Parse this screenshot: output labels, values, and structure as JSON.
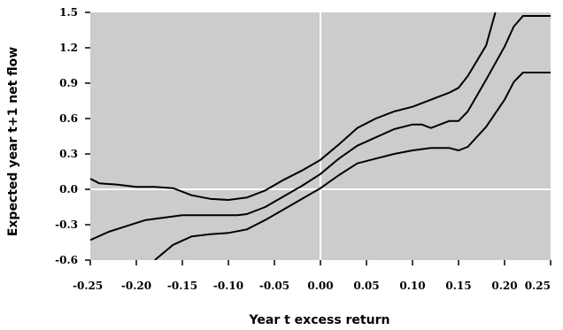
{
  "chart_data": {
    "type": "line",
    "title": "",
    "xlabel": "Year t excess return",
    "ylabel": "Expected year t+1 net flow",
    "xlim": [
      -0.25,
      0.25
    ],
    "ylim": [
      -0.6,
      1.5
    ],
    "x_ticks": [
      -0.25,
      -0.2,
      -0.15,
      -0.1,
      -0.05,
      0.0,
      0.05,
      0.1,
      0.15,
      0.2,
      0.25
    ],
    "x_tick_labels": [
      "-0.25",
      "-0.20",
      "-0.15",
      "-0.10",
      "-0.05",
      "0.00",
      "0.05",
      "0.10",
      "0.15",
      "0.20",
      "0.25"
    ],
    "y_ticks": [
      -0.6,
      -0.3,
      0.0,
      0.3,
      0.6,
      0.9,
      1.2,
      1.5
    ],
    "y_tick_labels": [
      "-0.6",
      "-0.3",
      "0.0",
      "0.3",
      "0.6",
      "0.9",
      "1.2",
      "1.5"
    ],
    "grid": false,
    "reference_lines": {
      "x": 0.0,
      "y": 0.0,
      "color": "#ffffff"
    },
    "colors": {
      "plot_background": "#cccccc",
      "line": "#000000"
    },
    "series": [
      {
        "role": "upper band",
        "x": [
          -0.25,
          -0.24,
          -0.22,
          -0.2,
          -0.18,
          -0.16,
          -0.14,
          -0.12,
          -0.1,
          -0.08,
          -0.06,
          -0.04,
          -0.02,
          0.0,
          0.02,
          0.04,
          0.06,
          0.08,
          0.1,
          0.12,
          0.14,
          0.15,
          0.16,
          0.18,
          0.19
        ],
        "y": [
          0.09,
          0.05,
          0.04,
          0.02,
          0.02,
          0.01,
          -0.05,
          -0.08,
          -0.09,
          -0.07,
          -0.01,
          0.08,
          0.16,
          0.25,
          0.38,
          0.52,
          0.6,
          0.66,
          0.7,
          0.76,
          0.82,
          0.86,
          0.96,
          1.22,
          1.5
        ]
      },
      {
        "role": "estimate",
        "x": [
          -0.25,
          -0.23,
          -0.21,
          -0.19,
          -0.17,
          -0.15,
          -0.13,
          -0.11,
          -0.09,
          -0.08,
          -0.06,
          -0.04,
          -0.02,
          0.0,
          0.02,
          0.04,
          0.06,
          0.08,
          0.1,
          0.11,
          0.12,
          0.13,
          0.14,
          0.15,
          0.16,
          0.18,
          0.2,
          0.21,
          0.22,
          0.25
        ],
        "y": [
          -0.43,
          -0.36,
          -0.31,
          -0.26,
          -0.24,
          -0.22,
          -0.22,
          -0.22,
          -0.22,
          -0.21,
          -0.15,
          -0.06,
          0.03,
          0.13,
          0.26,
          0.37,
          0.44,
          0.51,
          0.55,
          0.55,
          0.52,
          0.55,
          0.58,
          0.58,
          0.66,
          0.93,
          1.21,
          1.38,
          1.47,
          1.47
        ]
      },
      {
        "role": "lower band",
        "x": [
          -0.18,
          -0.16,
          -0.14,
          -0.12,
          -0.1,
          -0.08,
          -0.06,
          -0.04,
          -0.02,
          0.0,
          0.02,
          0.04,
          0.06,
          0.08,
          0.1,
          0.12,
          0.14,
          0.15,
          0.16,
          0.18,
          0.2,
          0.21,
          0.22,
          0.25
        ],
        "y": [
          -0.6,
          -0.47,
          -0.4,
          -0.38,
          -0.37,
          -0.34,
          -0.26,
          -0.17,
          -0.08,
          0.01,
          0.12,
          0.22,
          0.26,
          0.3,
          0.33,
          0.35,
          0.35,
          0.33,
          0.36,
          0.53,
          0.76,
          0.91,
          0.99,
          0.99
        ]
      }
    ]
  }
}
